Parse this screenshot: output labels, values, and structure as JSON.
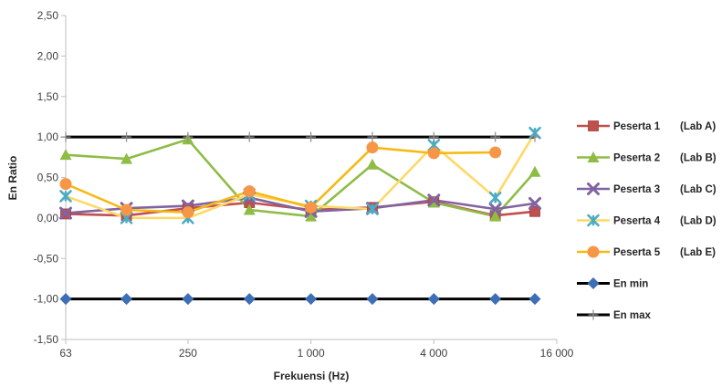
{
  "chart_data": {
    "type": "line",
    "xlabel": "Frekuensi (Hz)",
    "ylabel": "En Ratio",
    "ylim": [
      -1.5,
      2.5
    ],
    "yticks": [
      "2,50",
      "2,00",
      "1,50",
      "1,00",
      "0,50",
      "0,00",
      "-0,50",
      "-1,00",
      "-1,50"
    ],
    "ytick_values": [
      2.5,
      2.0,
      1.5,
      1.0,
      0.5,
      0.0,
      -0.5,
      -1.0,
      -1.5
    ],
    "xscale": "log2",
    "x": [
      63,
      125,
      250,
      500,
      1000,
      2000,
      4000,
      8000,
      12500
    ],
    "xlim": [
      63,
      16000
    ],
    "xticks": [
      "63",
      "250",
      "1 000",
      "4 000",
      "16 000"
    ],
    "xtick_values": [
      63,
      250,
      1000,
      4000,
      16000
    ],
    "grid": false,
    "legend_position": "right",
    "series": [
      {
        "name": "Peserta 1",
        "lab": "(Lab A)",
        "color": "#c0504d",
        "marker": "square",
        "values": [
          0.05,
          0.03,
          0.12,
          0.19,
          0.1,
          0.13,
          0.2,
          0.03,
          0.08
        ]
      },
      {
        "name": "Peserta 2",
        "lab": "(Lab B)",
        "color": "#8fbc45",
        "marker": "triangle",
        "values": [
          0.78,
          0.73,
          0.97,
          0.1,
          0.02,
          0.66,
          0.19,
          0.02,
          0.57
        ]
      },
      {
        "name": "Peserta 3",
        "lab": "(Lab C)",
        "color": "#8064a2",
        "marker": "x",
        "values": [
          0.06,
          0.12,
          0.15,
          0.25,
          0.08,
          0.12,
          0.22,
          0.11,
          0.18
        ]
      },
      {
        "name": "Peserta 4",
        "lab": "(Lab D)",
        "color": "#4bacc6",
        "marker": "star",
        "line_color": "#ffd966",
        "values": [
          0.27,
          0.0,
          0.0,
          0.29,
          0.15,
          0.11,
          0.9,
          0.25,
          1.05
        ]
      },
      {
        "name": "Peserta 5",
        "lab": "(Lab E)",
        "color": "#f79646",
        "marker": "circle",
        "line_color": "#f6b914",
        "values": [
          0.42,
          0.1,
          0.07,
          0.33,
          0.13,
          0.87,
          0.8,
          0.81,
          null
        ]
      },
      {
        "name": "En min",
        "lab": "",
        "color": "#3e6eb6",
        "marker": "diamond",
        "line_color": "#000000",
        "values": [
          -1,
          -1,
          -1,
          -1,
          -1,
          -1,
          -1,
          -1,
          -1
        ]
      },
      {
        "name": "En max",
        "lab": "",
        "color": "#8c8c8c",
        "marker": "plus",
        "line_color": "#000000",
        "values": [
          1,
          1,
          1,
          1,
          1,
          1,
          1,
          1,
          1
        ]
      }
    ]
  }
}
